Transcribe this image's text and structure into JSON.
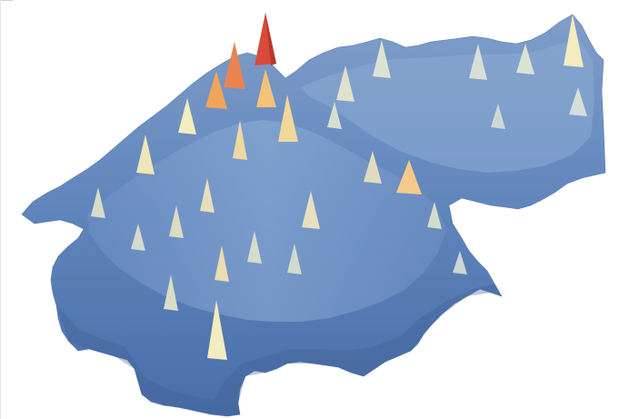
{
  "figure": {
    "kind": "3d-surface-relief",
    "colormap": {
      "low": "#4a6ea8",
      "mid_low": "#8fb0d8",
      "mid": "#c9d9ea",
      "mid_high": "#f3ecbf",
      "high": "#f0a55c",
      "peak": "#d94a3a"
    },
    "background_color": "#ffffff"
  }
}
